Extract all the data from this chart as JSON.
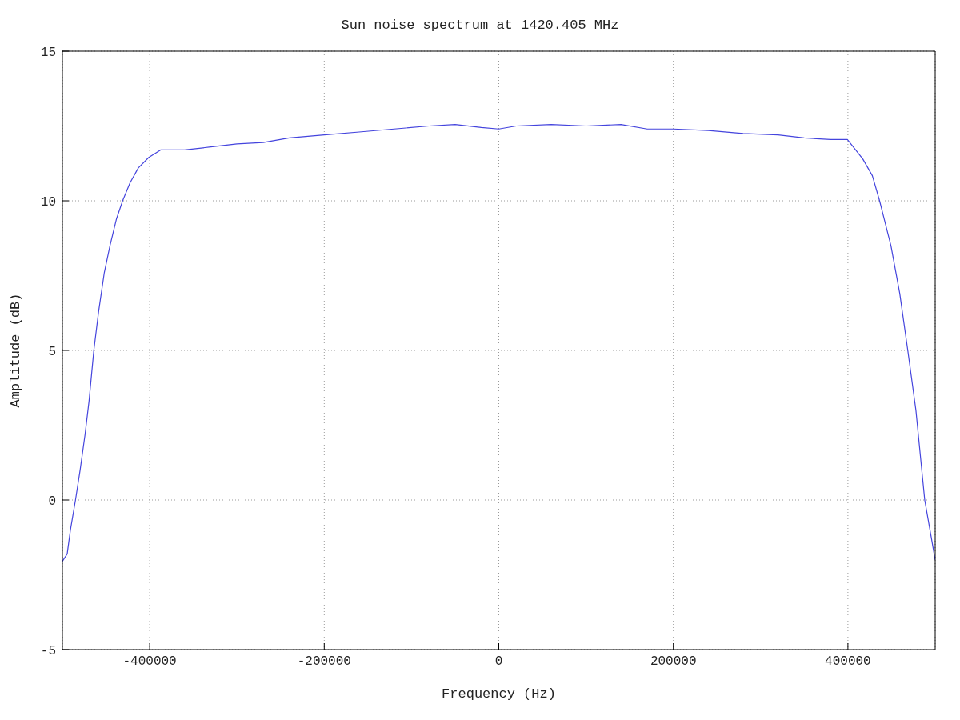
{
  "chart_data": {
    "type": "line",
    "title": "Sun noise spectrum at 1420.405 MHz",
    "xlabel": "Frequency (Hz)",
    "ylabel": "Amplitude (dB)",
    "x": [
      -500000,
      -494500,
      -490800,
      -485000,
      -479700,
      -474000,
      -469500,
      -464000,
      -458500,
      -452000,
      -445500,
      -438000,
      -431000,
      -422500,
      -413000,
      -401000,
      -387500,
      -360000,
      -330000,
      -300000,
      -270000,
      -240000,
      -200000,
      -160000,
      -120000,
      -80000,
      -50000,
      -20000,
      0,
      20000,
      60000,
      100000,
      140000,
      170000,
      200000,
      240000,
      280000,
      320000,
      350000,
      380000,
      399400,
      417000,
      428000,
      436300,
      449300,
      459400,
      468600,
      477900,
      488000,
      500000
    ],
    "series": [
      {
        "color": "#4444dd",
        "values": [
          -2.05,
          -1.8,
          -1.0,
          0,
          1.0,
          2.2,
          3.3,
          5.0,
          6.3,
          7.6,
          8.5,
          9.4,
          10.0,
          10.6,
          11.1,
          11.45,
          11.7,
          11.7,
          11.8,
          11.9,
          11.95,
          12.1,
          12.2,
          12.3,
          12.4,
          12.5,
          12.55,
          12.45,
          12.4,
          12.5,
          12.55,
          12.5,
          12.55,
          12.4,
          12.4,
          12.35,
          12.25,
          12.2,
          12.1,
          12.05,
          12.05,
          11.4,
          10.84,
          10.0,
          8.5,
          6.9,
          5.0,
          3.0,
          0,
          -2.0
        ]
      }
    ],
    "xlim": [
      -500000,
      500000
    ],
    "xticks": [
      -400000,
      -200000,
      0,
      200000,
      400000
    ],
    "ylim": [
      -5,
      15
    ],
    "yticks": [
      -5,
      0,
      5,
      10,
      15
    ],
    "grid": true,
    "marker": "none",
    "line_style": "solid"
  }
}
